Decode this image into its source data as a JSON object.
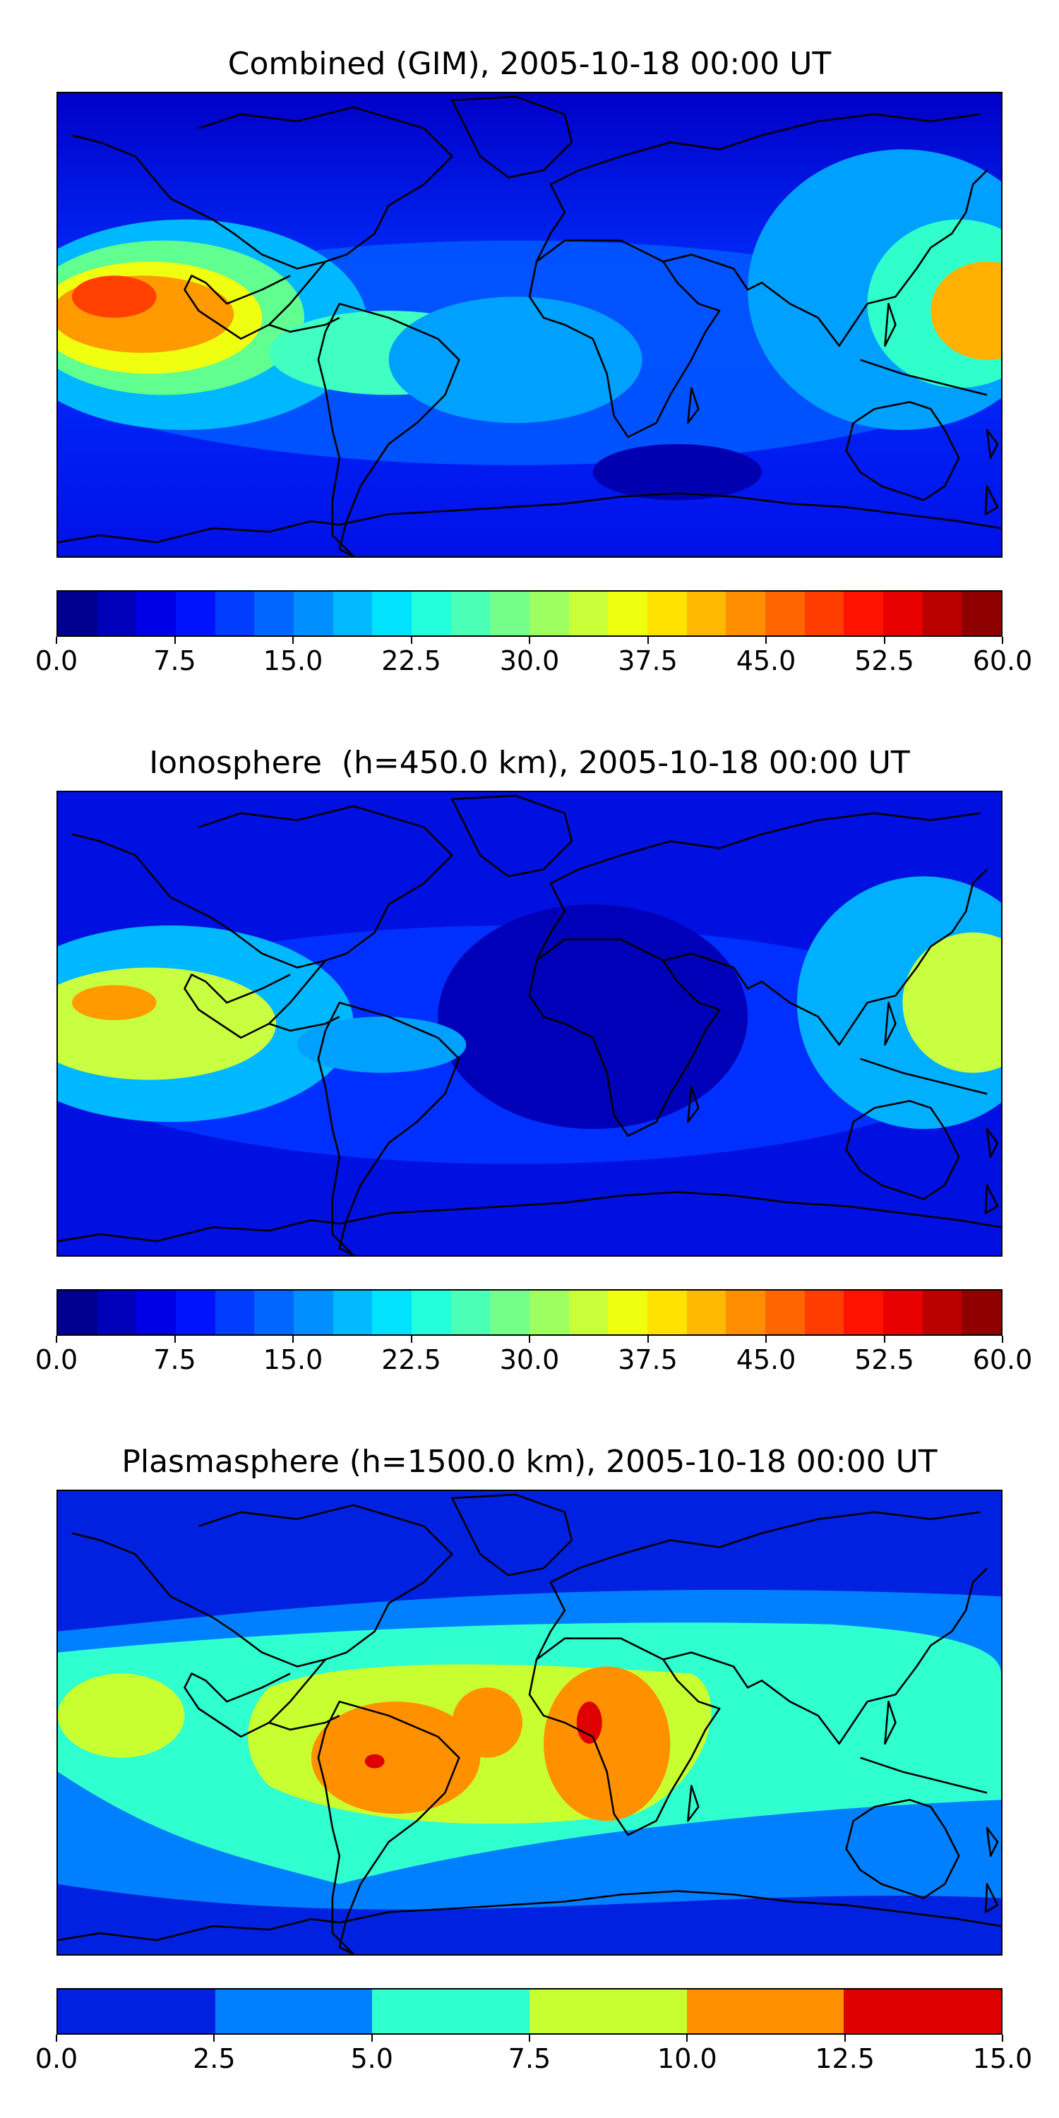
{
  "panels": [
    {
      "title": "Combined (GIM), 2005-10-18 00:00 UT",
      "colorbar": {
        "colors": [
          "#00008f",
          "#0000bb",
          "#0000e8",
          "#0013ff",
          "#003dff",
          "#0066ff",
          "#008fff",
          "#00b9ff",
          "#00e2ff",
          "#22ffdd",
          "#4bffb4",
          "#74ff8b",
          "#9eff61",
          "#c7ff38",
          "#f0ff0f",
          "#ffe200",
          "#ffb900",
          "#ff8f00",
          "#ff6600",
          "#ff3d00",
          "#ff1300",
          "#e80000",
          "#bb0000",
          "#8f0000"
        ],
        "ticks": [
          "0.0",
          "7.5",
          "15.0",
          "22.5",
          "30.0",
          "37.5",
          "45.0",
          "52.5",
          "60.0"
        ]
      }
    },
    {
      "title": "Ionosphere  (h=450.0 km), 2005-10-18 00:00 UT",
      "colorbar": {
        "colors": [
          "#00008f",
          "#0000bb",
          "#0000e8",
          "#0013ff",
          "#003dff",
          "#0066ff",
          "#008fff",
          "#00b9ff",
          "#00e2ff",
          "#22ffdd",
          "#4bffb4",
          "#74ff8b",
          "#9eff61",
          "#c7ff38",
          "#f0ff0f",
          "#ffe200",
          "#ffb900",
          "#ff8f00",
          "#ff6600",
          "#ff3d00",
          "#ff1300",
          "#e80000",
          "#bb0000",
          "#8f0000"
        ],
        "ticks": [
          "0.0",
          "7.5",
          "15.0",
          "22.5",
          "30.0",
          "37.5",
          "45.0",
          "52.5",
          "60.0"
        ]
      }
    },
    {
      "title": "Plasmasphere (h=1500.0 km), 2005-10-18 00:00 UT",
      "colorbar": {
        "colors": [
          "#0022e0",
          "#0080ff",
          "#30ffd0",
          "#c8ff30",
          "#ff9000",
          "#de0000"
        ],
        "ticks": [
          "0.0",
          "2.5",
          "5.0",
          "7.5",
          "10.0",
          "12.5",
          "15.0"
        ]
      }
    }
  ]
}
